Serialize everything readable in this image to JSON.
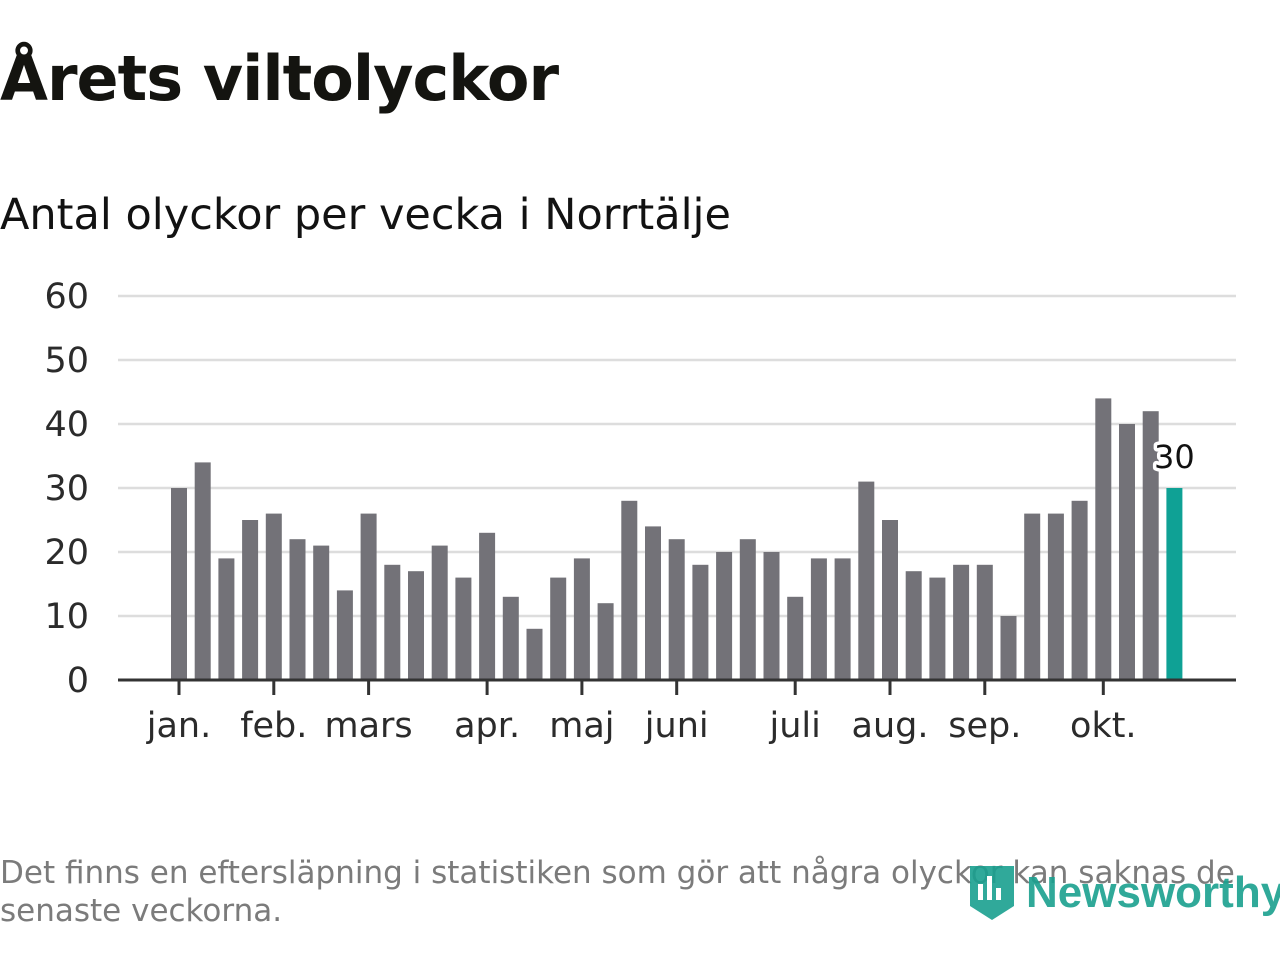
{
  "header": {
    "title": "Årets viltolyckor",
    "subtitle": "Antal olyckor per vecka i Norrtälje"
  },
  "chart_data": {
    "type": "bar",
    "title": "Årets viltolyckor",
    "subtitle": "Antal olyckor per vecka i Norrtälje",
    "xlabel": "",
    "ylabel": "",
    "ylim": [
      0,
      60
    ],
    "y_ticks": [
      "0",
      "10",
      "20",
      "30",
      "40",
      "50",
      "60"
    ],
    "grid": true,
    "values": [
      30,
      34,
      19,
      25,
      26,
      22,
      21,
      14,
      26,
      18,
      17,
      21,
      16,
      23,
      13,
      8,
      16,
      19,
      12,
      28,
      24,
      22,
      18,
      20,
      22,
      20,
      13,
      19,
      19,
      31,
      25,
      17,
      16,
      18,
      18,
      10,
      26,
      26,
      28,
      44,
      40,
      42,
      30
    ],
    "month_labels": [
      {
        "label": "jan.",
        "week_index": 0
      },
      {
        "label": "feb.",
        "week_index": 4
      },
      {
        "label": "mars",
        "week_index": 8
      },
      {
        "label": "apr.",
        "week_index": 13
      },
      {
        "label": "maj",
        "week_index": 17
      },
      {
        "label": "juni",
        "week_index": 21
      },
      {
        "label": "juli",
        "week_index": 26
      },
      {
        "label": "aug.",
        "week_index": 30
      },
      {
        "label": "sep.",
        "week_index": 34
      },
      {
        "label": "okt.",
        "week_index": 39
      }
    ],
    "highlight_last": true,
    "last_value_label": "30",
    "colors": {
      "bar": "#737278",
      "highlight": "#0fa195",
      "grid": "#dddddd",
      "axis": "#333333"
    }
  },
  "footer": {
    "note": "Det finns en eftersläpning i statistiken som gör att några olyckor kan saknas de senaste veckorna.",
    "logo_text": "Newsworthy"
  }
}
